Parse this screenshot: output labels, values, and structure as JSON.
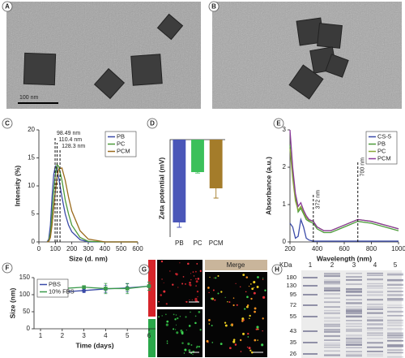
{
  "chart_data": [
    {
      "type": "line",
      "panel": "C",
      "xlabel": "Size (d. nm)",
      "ylabel": "Intensity (%)",
      "x": [
        50,
        60,
        70,
        80,
        90,
        100,
        110,
        120,
        140,
        160,
        180,
        200,
        250,
        300,
        400,
        500,
        600
      ],
      "series": [
        {
          "name": "PB",
          "color": "#3b4ba8",
          "values": [
            0,
            0.5,
            3,
            8,
            12,
            13.5,
            13,
            11.5,
            8,
            5,
            3,
            1.8,
            0.4,
            0,
            0,
            0,
            0
          ]
        },
        {
          "name": "PC",
          "color": "#4c9a3a",
          "values": [
            0,
            0.2,
            1.5,
            5,
            9,
            12,
            13.8,
            13.5,
            11,
            7.5,
            5,
            3,
            0.8,
            0.1,
            0,
            0,
            0
          ]
        },
        {
          "name": "PCM",
          "color": "#9a6a1c",
          "values": [
            0,
            0.1,
            0.8,
            3,
            6,
            9,
            11.5,
            13,
            13.2,
            11,
            8,
            5.5,
            2,
            0.5,
            0,
            0,
            0
          ]
        }
      ],
      "xlim": [
        0,
        600
      ],
      "xticks": [
        0,
        100,
        200,
        300,
        400,
        500,
        600
      ],
      "ylim": [
        0,
        20
      ],
      "yticks": [
        0,
        5,
        10,
        15,
        20
      ],
      "annotations": [
        {
          "x": 98.49,
          "label": "98.49 nm"
        },
        {
          "x": 110.4,
          "label": "110.4 nm"
        },
        {
          "x": 128.3,
          "label": "128.3 nm"
        }
      ],
      "legend": "upper right"
    },
    {
      "type": "bar",
      "panel": "D",
      "ylabel": "Zeta potential (mV)",
      "categories": [
        "PB",
        "PC",
        "PCM"
      ],
      "values": [
        -25.5,
        -10,
        -15
      ],
      "errors": [
        1.5,
        0.3,
        3
      ],
      "colors": [
        "#4a56b8",
        "#3cc05a",
        "#a47c2a"
      ],
      "ylim": [
        -30,
        0
      ]
    },
    {
      "type": "line",
      "panel": "E",
      "xlabel": "Wavelength (nm)",
      "ylabel": "Absorbance (a.u.)",
      "x": [
        200,
        220,
        240,
        260,
        280,
        300,
        320,
        340,
        372,
        400,
        450,
        500,
        600,
        700,
        800,
        900,
        1000
      ],
      "series": [
        {
          "name": "CS-5",
          "color": "#3b4ba8",
          "values": [
            0.5,
            0.4,
            0.1,
            0.15,
            0.6,
            0.4,
            0.1,
            0.05,
            0.02,
            0.02,
            0.02,
            0.02,
            0.02,
            0.02,
            0.02,
            0.02,
            0.02
          ]
        },
        {
          "name": "PB",
          "color": "#4c9a3a",
          "values": [
            2.6,
            1.8,
            1.2,
            0.8,
            0.9,
            0.75,
            0.6,
            0.55,
            0.5,
            0.35,
            0.25,
            0.25,
            0.4,
            0.55,
            0.5,
            0.4,
            0.3
          ]
        },
        {
          "name": "PC",
          "color": "#8aa83a",
          "values": [
            2.5,
            1.7,
            1.1,
            0.85,
            0.95,
            0.8,
            0.65,
            0.58,
            0.55,
            0.4,
            0.3,
            0.3,
            0.45,
            0.6,
            0.55,
            0.45,
            0.35
          ]
        },
        {
          "name": "PCM",
          "color": "#8b3a9a",
          "values": [
            3.0,
            2.0,
            1.3,
            0.95,
            1.05,
            0.85,
            0.7,
            0.6,
            0.55,
            0.4,
            0.3,
            0.3,
            0.45,
            0.6,
            0.55,
            0.45,
            0.35
          ]
        }
      ],
      "xlim": [
        200,
        1000
      ],
      "xticks": [
        200,
        400,
        600,
        800,
        1000
      ],
      "ylim": [
        0,
        3
      ],
      "yticks": [
        0,
        1,
        2,
        3
      ],
      "annotations": [
        {
          "x": 372,
          "label": "372 nm"
        },
        {
          "x": 700,
          "label": "700 nm"
        }
      ],
      "legend": "upper right"
    },
    {
      "type": "line",
      "panel": "F",
      "xlabel": "Time (days)",
      "ylabel": "Size (nm)",
      "x": [
        1,
        2,
        3,
        4,
        5,
        6
      ],
      "series": [
        {
          "name": "PBS",
          "color": "#3b4ba8",
          "marker": "circle",
          "values": [
            125,
            108,
            112,
            117,
            120,
            125
          ],
          "errors": [
            12,
            4,
            6,
            10,
            12,
            12
          ]
        },
        {
          "name": "10% FBS",
          "color": "#3a9a4a",
          "marker": "square",
          "values": [
            118,
            118,
            122,
            118,
            118,
            125
          ],
          "errors": [
            20,
            6,
            3,
            15,
            15,
            12
          ]
        }
      ],
      "xlim": [
        0.7,
        6.3
      ],
      "xticks": [
        1,
        2,
        3,
        4,
        5,
        6
      ],
      "ylim": [
        0,
        150
      ],
      "yticks": [
        0,
        50,
        100,
        150
      ],
      "legend": "upper left"
    }
  ],
  "images": {
    "a": {
      "panel": "A",
      "scale_bar": "100 nm"
    },
    "b": {
      "panel": "B"
    },
    "g": {
      "panel": "G",
      "header": "Merge"
    },
    "h": {
      "panel": "H",
      "unit": "KDa",
      "lanes": [
        "1",
        "2",
        "3",
        "4",
        "5"
      ],
      "markers": [
        "180",
        "130",
        "95",
        "72",
        "55",
        "43",
        "35",
        "26"
      ]
    }
  }
}
